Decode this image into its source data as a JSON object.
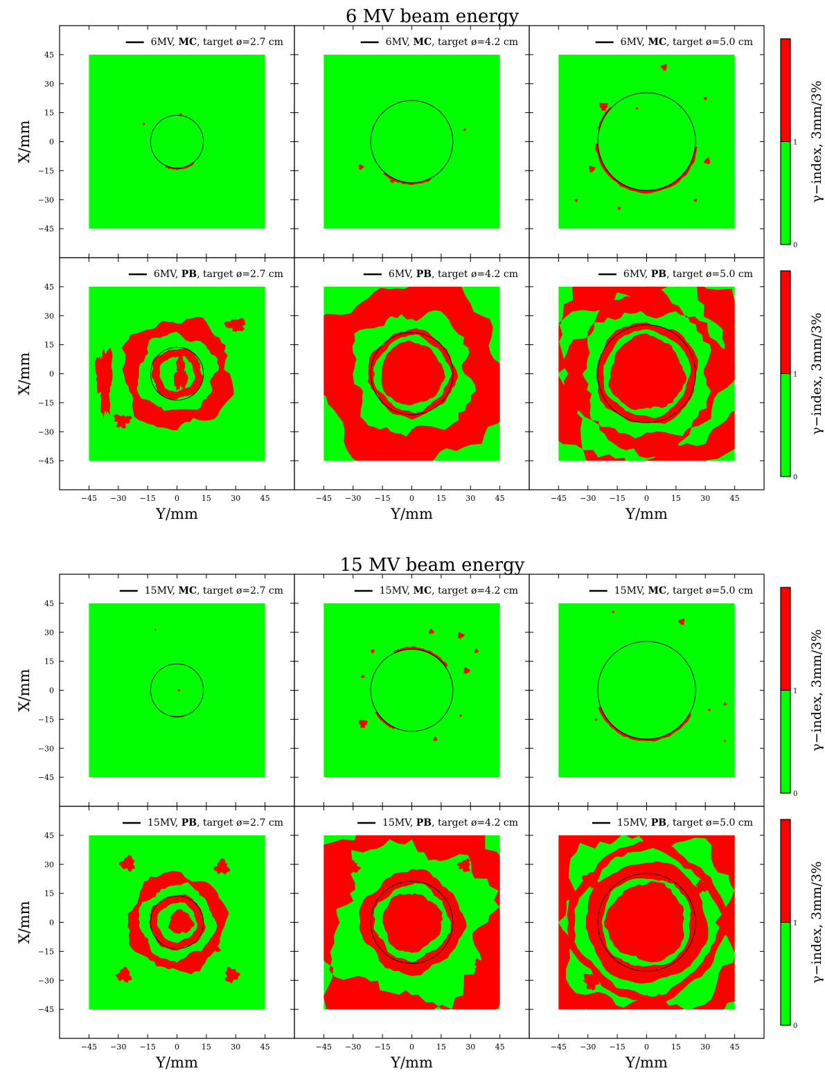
{
  "colors": {
    "pass": "#00ff00",
    "fail": "#ff0000",
    "frame": "#000000",
    "background": "#ffffff",
    "contour": "#000000"
  },
  "chart_data": {
    "type": "heatmap",
    "description_free": true,
    "blocks": [
      {
        "title": "6 MV beam energy",
        "rows": [
          {
            "ylabel": "X/mm",
            "colorbar": {
              "label": "γ−index, 3mm/3%",
              "ticks": [
                "0",
                "1"
              ],
              "range": [
                0,
                2
              ]
            },
            "panels": [
              {
                "legend": {
                  "prefix": "6MV, ",
                  "method": "MC",
                  "suffix": ", target ø=2.7 cm"
                },
                "target_diameter_mm": 27,
                "fail_pattern": "mc-small"
              },
              {
                "legend": {
                  "prefix": "6MV, ",
                  "method": "MC",
                  "suffix": ", target ø=4.2 cm"
                },
                "target_diameter_mm": 42,
                "fail_pattern": "mc-medium"
              },
              {
                "legend": {
                  "prefix": "6MV, ",
                  "method": "MC",
                  "suffix": ", target ø=5.0 cm"
                },
                "target_diameter_mm": 50,
                "fail_pattern": "mc-large"
              }
            ]
          },
          {
            "ylabel": "X/mm",
            "colorbar": {
              "label": "γ−index, 3mm/3%",
              "ticks": [
                "0",
                "1"
              ],
              "range": [
                0,
                2
              ]
            },
            "panels": [
              {
                "legend": {
                  "prefix": "6MV, ",
                  "method": "PB",
                  "suffix": ", target ø=2.7 cm"
                },
                "target_diameter_mm": 27,
                "fail_pattern": "pb-small"
              },
              {
                "legend": {
                  "prefix": "6MV, ",
                  "method": "PB",
                  "suffix": ", target ø=4.2 cm"
                },
                "target_diameter_mm": 42,
                "fail_pattern": "pb-medium"
              },
              {
                "legend": {
                  "prefix": "6MV, ",
                  "method": "PB",
                  "suffix": ", target ø=5.0 cm"
                },
                "target_diameter_mm": 50,
                "fail_pattern": "pb-large"
              }
            ]
          }
        ],
        "xlabel": "Y/mm"
      },
      {
        "title": "15 MV beam energy",
        "rows": [
          {
            "ylabel": "X/mm",
            "colorbar": {
              "label": "γ−index, 3mm/3%",
              "ticks": [
                "0",
                "1"
              ],
              "range": [
                0,
                2
              ]
            },
            "panels": [
              {
                "legend": {
                  "prefix": "15MV, ",
                  "method": "MC",
                  "suffix": ", target ø=2.7 cm"
                },
                "target_diameter_mm": 27,
                "fail_pattern": "mc15-small"
              },
              {
                "legend": {
                  "prefix": "15MV, ",
                  "method": "MC",
                  "suffix": ", target ø=4.2 cm"
                },
                "target_diameter_mm": 42,
                "fail_pattern": "mc15-medium"
              },
              {
                "legend": {
                  "prefix": "15MV, ",
                  "method": "MC",
                  "suffix": ", target ø=5.0 cm"
                },
                "target_diameter_mm": 50,
                "fail_pattern": "mc15-large"
              }
            ]
          },
          {
            "ylabel": "X/mm",
            "colorbar": {
              "label": "γ−index, 3mm/3%",
              "ticks": [
                "0",
                "1"
              ],
              "range": [
                0,
                2
              ]
            },
            "panels": [
              {
                "legend": {
                  "prefix": "15MV, ",
                  "method": "PB",
                  "suffix": ", target ø=2.7 cm"
                },
                "target_diameter_mm": 27,
                "fail_pattern": "pb15-small"
              },
              {
                "legend": {
                  "prefix": "15MV, ",
                  "method": "PB",
                  "suffix": ", target ø=4.2 cm"
                },
                "target_diameter_mm": 42,
                "fail_pattern": "pb15-medium"
              },
              {
                "legend": {
                  "prefix": "15MV, ",
                  "method": "PB",
                  "suffix": ", target ø=5.0 cm"
                },
                "target_diameter_mm": 50,
                "fail_pattern": "pb15-large"
              }
            ]
          }
        ],
        "xlabel": "Y/mm"
      }
    ],
    "axis": {
      "xlim": [
        -60,
        60
      ],
      "ylim": [
        -60,
        60
      ],
      "data_extent": [
        -45,
        45
      ],
      "ticks": [
        -45,
        -30,
        -15,
        0,
        15,
        30,
        45
      ],
      "tick_labels": [
        "−45",
        "−30",
        "−15",
        "0",
        "15",
        "30",
        "45"
      ]
    }
  }
}
